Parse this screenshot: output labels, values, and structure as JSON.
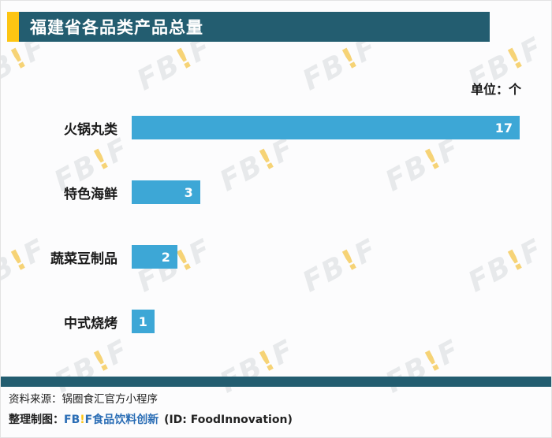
{
  "header": {
    "title": "福建省各品类产品总量"
  },
  "chart_data": {
    "type": "bar",
    "orientation": "horizontal",
    "title": "福建省各品类产品总量",
    "unit_label": "单位：个",
    "categories": [
      "火锅丸类",
      "特色海鲜",
      "蔬菜豆制品",
      "中式烧烤"
    ],
    "values": [
      17,
      3,
      2,
      1
    ],
    "xlim": [
      0,
      17
    ],
    "grid": false,
    "legend": false,
    "value_labels": "inside-end",
    "bar_color": "#3da7d6"
  },
  "watermark": {
    "text": "FB!F"
  },
  "footer": {
    "source": "资料来源：锅圈食汇官方小程序",
    "credit_prefix": "整理制图：",
    "logo_fb": "FB",
    "logo_bang": "!",
    "logo_f": "F",
    "credit_name": "食品饮料创新",
    "credit_id": "(ID: FoodInnovation)"
  },
  "colors": {
    "header_bg": "#235d70",
    "accent_yellow": "#fdc513",
    "bar_blue": "#3da7d6",
    "credit_blue": "#2a6db5"
  }
}
